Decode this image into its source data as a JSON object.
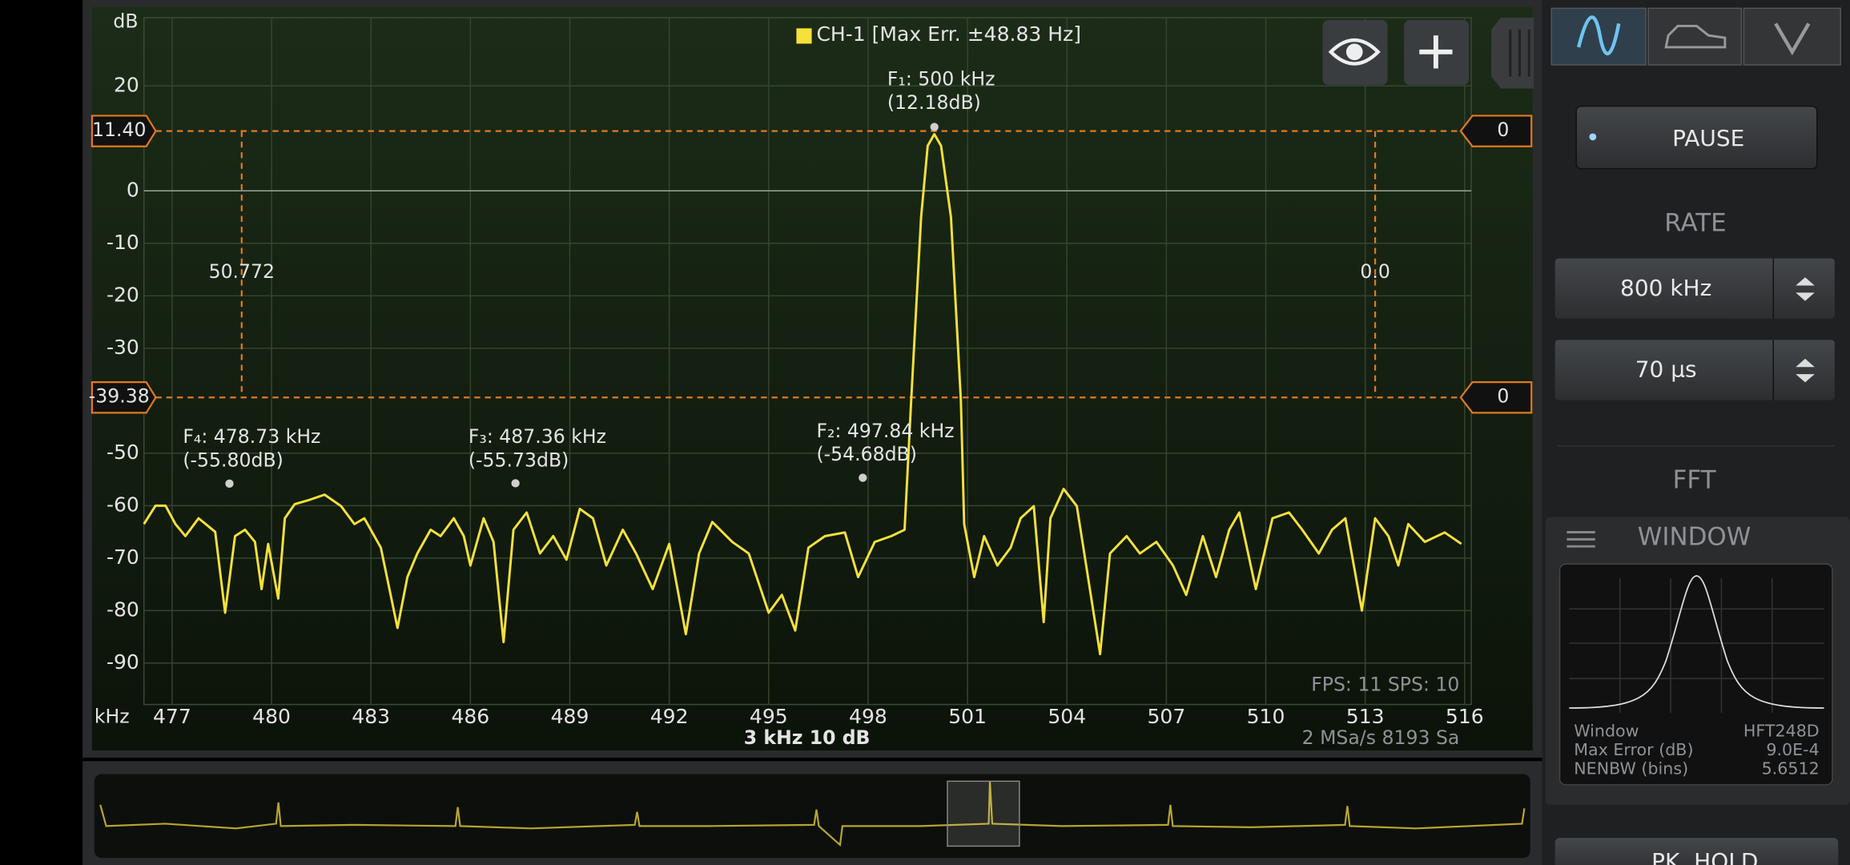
{
  "chart_data": {
    "type": "line",
    "x_label": "kHz",
    "y_label": "dB",
    "x": [
      476.15,
      476.5,
      476.8,
      477.1,
      477.4,
      477.8,
      478.3,
      478.6,
      478.9,
      479.2,
      479.5,
      479.7,
      479.9,
      480.2,
      480.4,
      480.7,
      481.1,
      481.6,
      482.1,
      482.5,
      482.8,
      483.3,
      483.8,
      484.1,
      484.4,
      484.8,
      485.1,
      485.5,
      485.8,
      486.0,
      486.4,
      486.7,
      487.0,
      487.3,
      487.7,
      488.1,
      488.5,
      488.9,
      489.3,
      489.7,
      490.1,
      490.6,
      491.0,
      491.5,
      492.0,
      492.5,
      492.9,
      493.3,
      493.9,
      494.4,
      495.0,
      495.4,
      495.8,
      496.2,
      496.7,
      497.3,
      497.7,
      498.2,
      498.7,
      499.1,
      499.3,
      499.6,
      499.8,
      500.0,
      500.2,
      500.5,
      500.8,
      500.9,
      501.2,
      501.5,
      501.9,
      502.3,
      502.6,
      503.0,
      503.3,
      503.5,
      503.9,
      504.3,
      505.0,
      505.3,
      505.8,
      506.2,
      506.7,
      507.2,
      507.6,
      508.1,
      508.5,
      508.9,
      509.2,
      509.7,
      510.2,
      510.7,
      511.1,
      511.6,
      512.0,
      512.4,
      512.9,
      513.3,
      513.7,
      514.0,
      514.3,
      514.8,
      515.4,
      515.9
    ],
    "series": [
      {
        "name": "CH-1 [Max Err. ±48.83 Hz]",
        "color": "#f5e13a",
        "values": [
          -63.5,
          -60,
          -60,
          -63.5,
          -65.8,
          -62.4,
          -65,
          -80.4,
          -65.8,
          -64.6,
          -66.9,
          -75.9,
          -67.3,
          -77.7,
          -62.4,
          -59.7,
          -59,
          -57.9,
          -60.1,
          -63.5,
          -62.4,
          -68,
          -83.3,
          -73.6,
          -69.1,
          -64.6,
          -65.8,
          -62.4,
          -65.8,
          -71.4,
          -62.4,
          -66.9,
          -86,
          -64.6,
          -61.3,
          -69.1,
          -65.8,
          -70.3,
          -60.6,
          -62.4,
          -71.4,
          -64.6,
          -69.1,
          -75.9,
          -67.3,
          -84.5,
          -69.1,
          -63.1,
          -66.9,
          -69.1,
          -80.4,
          -77,
          -83.8,
          -68,
          -65.8,
          -65.1,
          -73.6,
          -66.9,
          -65.8,
          -64.6,
          -39.9,
          -5,
          8.6,
          10.8,
          8.6,
          -5,
          -39.9,
          -63.5,
          -73.6,
          -65.8,
          -71.4,
          -68,
          -62.4,
          -60.1,
          -82.2,
          -62.4,
          -56.8,
          -60.1,
          -88.3,
          -69.1,
          -65.8,
          -69.1,
          -66.9,
          -71.4,
          -77,
          -65.8,
          -73.6,
          -64.6,
          -61.3,
          -75.9,
          -62.4,
          -61.3,
          -64.6,
          -69.1,
          -64.6,
          -62.4,
          -80,
          -62.4,
          -65.8,
          -71.4,
          -63.5,
          -66.9,
          -65.1,
          -67.3
        ]
      }
    ],
    "xlim": [
      476.15,
      516.2
    ],
    "ylim": [
      -97.9,
      33
    ],
    "xticks": [
      477,
      480,
      483,
      486,
      489,
      492,
      495,
      498,
      501,
      504,
      507,
      510,
      513,
      516
    ],
    "yticks": [
      20,
      0,
      -10,
      -20,
      -30,
      -50,
      -60,
      -70,
      -80,
      -90
    ],
    "grid": true,
    "cursors": {
      "y": [
        {
          "value": 11.4,
          "label": "11.40"
        },
        {
          "value": -39.38,
          "label": "-39.38"
        }
      ],
      "y_readouts": [
        "0",
        "0"
      ],
      "x": [
        479.1,
        513.3
      ],
      "x_readouts": [
        "50.772",
        "0.0"
      ]
    },
    "annotations": [
      {
        "label": "F₁: 500 kHz",
        "sublabel": "(12.18dB)",
        "x": 500,
        "y": 12.18
      },
      {
        "label": "F₂: 497.84 kHz",
        "sublabel": "(-54.68dB)",
        "x": 497.84,
        "y": -54.68
      },
      {
        "label": "F₃: 487.36 kHz",
        "sublabel": "(-55.73dB)",
        "x": 487.36,
        "y": -55.73
      },
      {
        "label": "F₄: 478.73 kHz",
        "sublabel": "(-55.80dB)",
        "x": 478.73,
        "y": -55.8
      }
    ],
    "scale_label": "3 kHz  10 dB",
    "sample_info": "2 MSa/s  8193 Sa",
    "fps_info": "FPS: 11  SPS: 10"
  },
  "ui": {
    "pause": "PAUSE",
    "rate_header": "RATE",
    "rate": "800 kHz",
    "timebase": "70 µs",
    "fft_header": "FFT",
    "window_header": "WINDOW",
    "window_info": [
      [
        "Window",
        "HFT248D"
      ],
      [
        "Max Error (dB)",
        "9.0E-4"
      ],
      [
        "NENBW (bins)",
        "5.6512"
      ]
    ],
    "pk_hold": "PK. HOLD"
  }
}
